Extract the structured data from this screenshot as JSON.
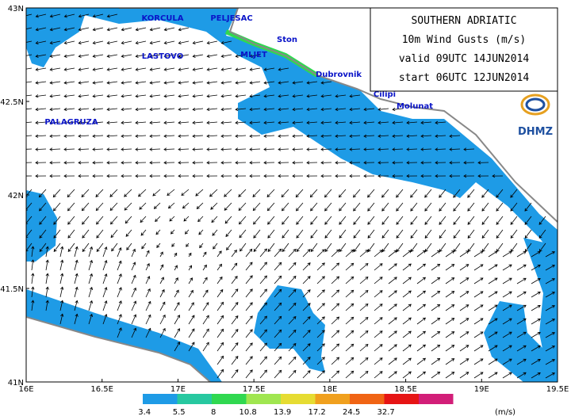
{
  "header": {
    "lines": [
      "SOUTHERN ADRIATIC",
      "10m Wind Gusts (m/s)",
      "valid 09UTC 14JUN2014",
      "start 06UTC 12JUN2014"
    ],
    "logo": "DHMZ"
  },
  "places": [
    "KORCULA",
    "PELJESAC",
    "Ston",
    "LASTOVO",
    "MLJET",
    "Dubrovnik",
    "Cilipi",
    "Molunat",
    "PALAGRUZA"
  ],
  "x_axis": [
    "16E",
    "16.5E",
    "17E",
    "17.5E",
    "18E",
    "18.5E",
    "19E",
    "19.5E"
  ],
  "y_axis": [
    "43N",
    "42.5N",
    "42N",
    "41.5N",
    "41N"
  ],
  "legend": {
    "levels": [
      "3.4",
      "5.5",
      "8",
      "10.8",
      "13.9",
      "17.2",
      "24.5",
      "32.7"
    ],
    "unit": "(m/s)",
    "colors": [
      "#1e9be6",
      "#27c8a0",
      "#30d850",
      "#a0e650",
      "#e6dc32",
      "#f0a01e",
      "#f06414",
      "#e61414",
      "#d21e78"
    ]
  }
}
